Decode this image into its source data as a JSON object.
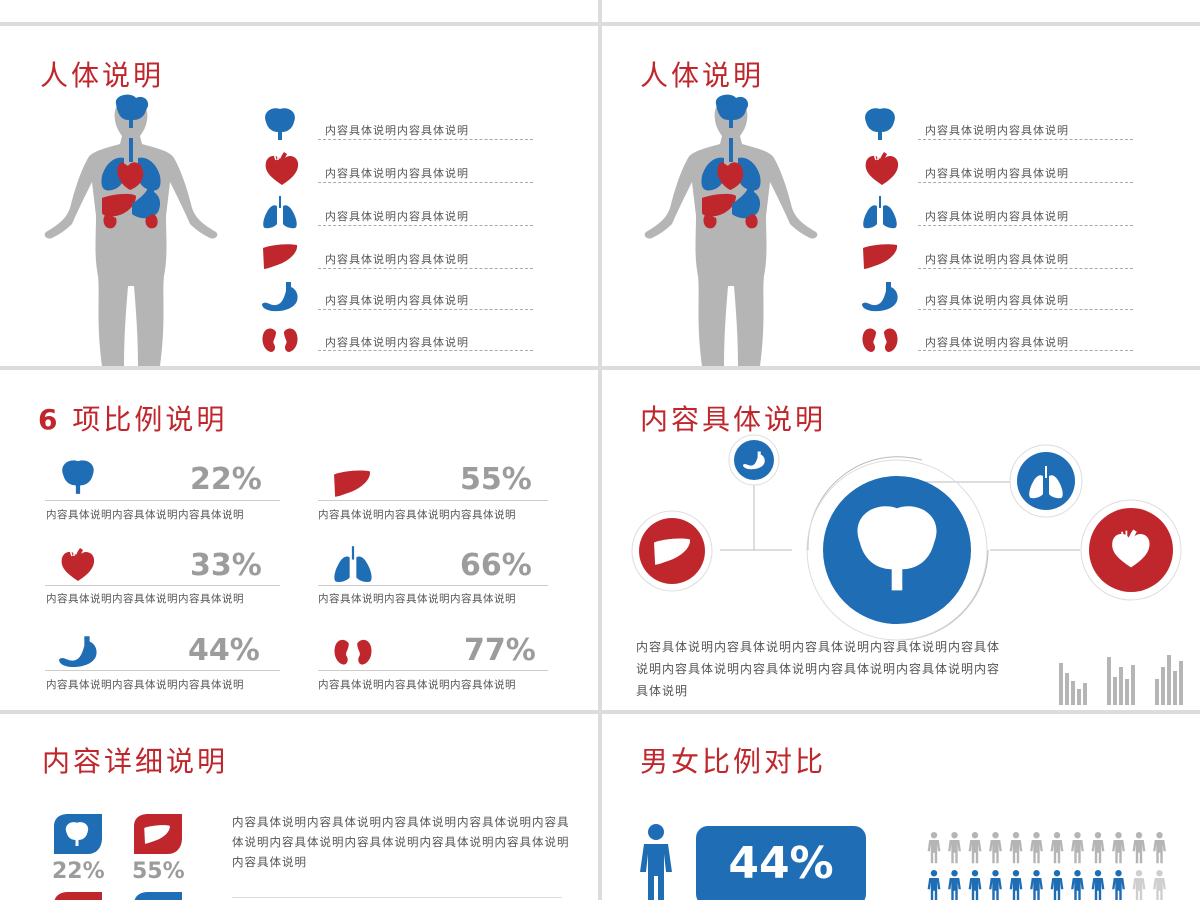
{
  "colors": {
    "red": "#c0272d",
    "blue": "#1f6db5",
    "gray": "#b5b5b5",
    "bg": "#dcdcdc"
  },
  "slide1": {
    "title": "人体说明",
    "items": [
      {
        "icon": "brain-icon",
        "text": "内容具体说明内容具体说明"
      },
      {
        "icon": "heart-icon",
        "text": "内容具体说明内容具体说明"
      },
      {
        "icon": "lungs-icon",
        "text": "内容具体说明内容具体说明"
      },
      {
        "icon": "liver-icon",
        "text": "内容具体说明内容具体说明"
      },
      {
        "icon": "stomach-icon",
        "text": "内容具体说明内容具体说明"
      },
      {
        "icon": "kidneys-icon",
        "text": "内容具体说明内容具体说明"
      }
    ]
  },
  "slide2": {
    "title": "人体说明",
    "items": [
      {
        "icon": "brain-icon",
        "text": "内容具体说明内容具体说明"
      },
      {
        "icon": "heart-icon",
        "text": "内容具体说明内容具体说明"
      },
      {
        "icon": "lungs-icon",
        "text": "内容具体说明内容具体说明"
      },
      {
        "icon": "liver-icon",
        "text": "内容具体说明内容具体说明"
      },
      {
        "icon": "stomach-icon",
        "text": "内容具体说明内容具体说明"
      },
      {
        "icon": "kidneys-icon",
        "text": "内容具体说明内容具体说明"
      }
    ]
  },
  "slide3": {
    "title_num": "6",
    "title": "项比例说明",
    "items": [
      {
        "icon": "brain-icon",
        "value": "22%",
        "caption": "内容具体说明内容具体说明内容具体说明"
      },
      {
        "icon": "liver-icon",
        "value": "55%",
        "caption": "内容具体说明内容具体说明内容具体说明"
      },
      {
        "icon": "heart-icon",
        "value": "33%",
        "caption": "内容具体说明内容具体说明内容具体说明"
      },
      {
        "icon": "lungs-icon",
        "value": "66%",
        "caption": "内容具体说明内容具体说明内容具体说明"
      },
      {
        "icon": "stomach-icon",
        "value": "44%",
        "caption": "内容具体说明内容具体说明内容具体说明"
      },
      {
        "icon": "kidneys-icon",
        "value": "77%",
        "caption": "内容具体说明内容具体说明内容具体说明"
      }
    ]
  },
  "slide4": {
    "title": "内容具体说明",
    "paragraph": "内容具体说明内容具体说明内容具体说明内容具体说明内容具体说明内容具体说明内容具体说明内容具体说明内容具体说明内容具体说明"
  },
  "slide5": {
    "title": "内容详细说明",
    "values": [
      "22%",
      "55%"
    ],
    "paragraph": "内容具体说明内容具体说明内容具体说明内容具体说明内容具体说明内容具体说明内容具体说明内容具体说明内容具体说明内容具体说明"
  },
  "slide6": {
    "title": "男女比例对比",
    "value": "44%",
    "icons_per_row": 12,
    "gray_row_count": 12,
    "blue_row_count": 10
  }
}
